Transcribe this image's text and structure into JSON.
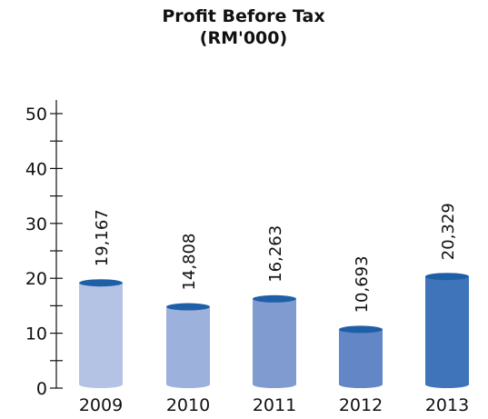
{
  "chart_data": {
    "type": "bar",
    "title": "Profit Before Tax",
    "subtitle": "(RM'000)",
    "categories": [
      "2009",
      "2010",
      "2011",
      "2012",
      "2013"
    ],
    "values": [
      19.167,
      14.808,
      16.263,
      10.693,
      20.329
    ],
    "value_labels": [
      "19,167",
      "14,808",
      "16,263",
      "10,693",
      "20,329"
    ],
    "colors": [
      "#b4c3e4",
      "#9cb1dc",
      "#7f9bd0",
      "#6286c6",
      "#3f74ba"
    ],
    "cap_color": "#1f5fa8",
    "ylim": [
      0,
      50
    ],
    "yticks": [
      0,
      10,
      20,
      30,
      40,
      50
    ],
    "grid": false
  }
}
